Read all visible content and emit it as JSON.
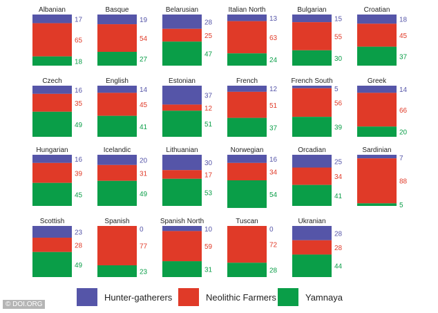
{
  "chart_data": {
    "type": "bar",
    "stacked": true,
    "normalized": true,
    "title": "",
    "categories": [
      "Albanian",
      "Basque",
      "Belarusian",
      "Italian North",
      "Bulgarian",
      "Croatian",
      "Czech",
      "English",
      "Estonian",
      "French",
      "French South",
      "Greek",
      "Hungarian",
      "Icelandic",
      "Lithuanian",
      "Norwegian",
      "Orcadian",
      "Sardinian",
      "Scottish",
      "Spanish",
      "Spanish North",
      "Tuscan",
      "Ukranian"
    ],
    "series": [
      {
        "name": "Hunter-gatherers",
        "color": "#5555a8",
        "values": [
          17,
          19,
          28,
          13,
          15,
          18,
          16,
          14,
          37,
          12,
          5,
          14,
          16,
          20,
          30,
          16,
          25,
          7,
          23,
          0,
          10,
          0,
          28
        ]
      },
      {
        "name": "Neolithic Farmers",
        "color": "#e03a28",
        "values": [
          65,
          54,
          25,
          63,
          55,
          45,
          35,
          45,
          12,
          51,
          56,
          66,
          39,
          31,
          17,
          34,
          34,
          88,
          28,
          77,
          59,
          72,
          28
        ]
      },
      {
        "name": "Yamnaya",
        "color": "#0a9e48",
        "values": [
          18,
          27,
          47,
          24,
          30,
          37,
          49,
          41,
          51,
          37,
          39,
          20,
          45,
          49,
          53,
          54,
          41,
          5,
          49,
          23,
          31,
          28,
          44
        ]
      }
    ],
    "ylim": [
      0,
      100
    ],
    "legend_position": "bottom"
  },
  "legend": {
    "items": [
      {
        "label": "Hunter-gatherers",
        "color": "#5555a8"
      },
      {
        "label": "Neolithic Farmers",
        "color": "#e03a28"
      },
      {
        "label": "Yamnaya",
        "color": "#0a9e48"
      }
    ]
  },
  "credit": "© DOI.ORG"
}
